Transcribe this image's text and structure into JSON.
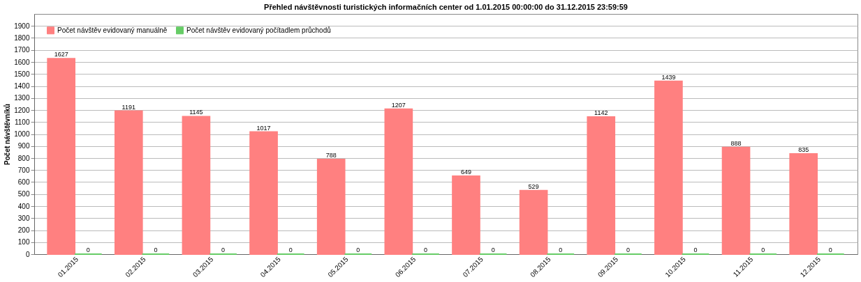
{
  "chart_data": {
    "type": "bar",
    "title": "Přehled návštěvnosti turistických informačních center od 1.01.2015 00:00:00 do 31.12.2015 23:59:59",
    "ylabel": "Počet návštěvníků",
    "categories": [
      "01.2015",
      "02.2015",
      "03.2015",
      "04.2015",
      "05.2015",
      "06.2015",
      "07.2015",
      "08.2015",
      "09.2015",
      "10.2015",
      "11.2015",
      "12.2015"
    ],
    "series": [
      {
        "name": "Počet návštěv evidovaný manuálně",
        "color": "#ff8080",
        "values": [
          1627,
          1191,
          1145,
          1017,
          788,
          1207,
          649,
          529,
          1142,
          1439,
          888,
          835
        ]
      },
      {
        "name": "Počet návštěv evidovaný počítadlem průchodů",
        "color": "#66cc66",
        "values": [
          0,
          0,
          0,
          0,
          0,
          0,
          0,
          0,
          0,
          0,
          0,
          0
        ]
      }
    ],
    "ylim": [
      0,
      2000
    ],
    "yticks": [
      0,
      100,
      200,
      300,
      400,
      500,
      600,
      700,
      800,
      900,
      1000,
      1100,
      1200,
      1300,
      1400,
      1500,
      1600,
      1700,
      1800,
      1900
    ],
    "grid": "y",
    "legend": "top left",
    "data_labels": true
  }
}
